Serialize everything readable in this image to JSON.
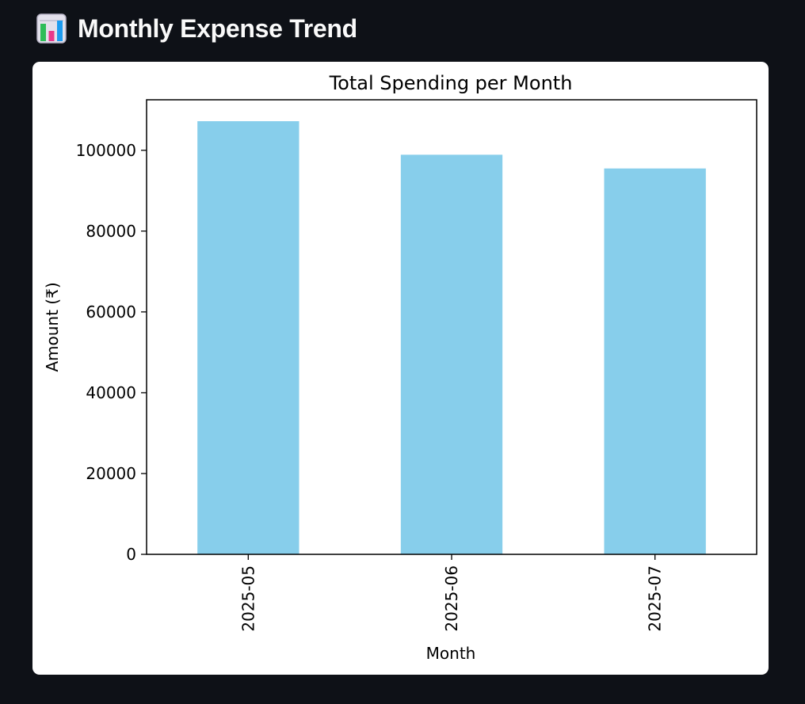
{
  "page": {
    "title": "Monthly Expense Trend",
    "title_icon": "bar-chart-icon"
  },
  "chart_data": {
    "type": "bar",
    "title": "Total Spending per Month",
    "xlabel": "Month",
    "ylabel": "Amount (₹)",
    "categories": [
      "2025-05",
      "2025-06",
      "2025-07"
    ],
    "values": [
      107200,
      98900,
      95500
    ],
    "ylim": [
      0,
      112500
    ],
    "yticks": [
      0,
      20000,
      40000,
      60000,
      80000,
      100000
    ],
    "bar_color": "#87ceeb",
    "grid": false,
    "legend": "none"
  }
}
